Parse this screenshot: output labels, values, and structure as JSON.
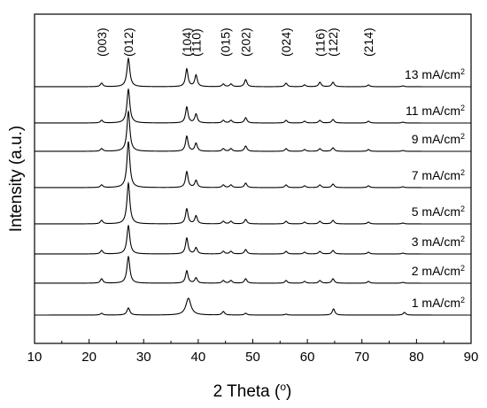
{
  "chart_data": {
    "type": "line",
    "xlabel_base": "2 Theta (",
    "xlabel_sup": "o",
    "xlabel_end": ")",
    "ylabel": "Intensity (a.u.)",
    "xlim": [
      10,
      90
    ],
    "xticks": [
      "10",
      "20",
      "30",
      "40",
      "50",
      "60",
      "70",
      "80",
      "90"
    ],
    "peaks": [
      {
        "label": "(003)",
        "x": 22.3
      },
      {
        "label": "(012)",
        "x": 27.2
      },
      {
        "label": "(104)",
        "x": 37.9
      },
      {
        "label": "(110)",
        "x": 39.6
      },
      {
        "label": "(015)",
        "x": 45.0
      },
      {
        "label": "(202)",
        "x": 48.7
      },
      {
        "label": "(024)",
        "x": 56.1
      },
      {
        "label": "(116)",
        "x": 62.3
      },
      {
        "label": "(122)",
        "x": 64.7
      },
      {
        "label": "(214)",
        "x": 71.2
      }
    ],
    "series": [
      {
        "name": "13 mA/cm",
        "sup": "2",
        "peaks": [
          [
            22.3,
            4
          ],
          [
            27.2,
            32
          ],
          [
            37.9,
            20
          ],
          [
            39.6,
            13
          ],
          [
            44.6,
            3
          ],
          [
            46.0,
            3
          ],
          [
            48.7,
            8
          ],
          [
            56.1,
            4
          ],
          [
            59.5,
            2
          ],
          [
            62.3,
            5
          ],
          [
            64.7,
            5
          ],
          [
            71.2,
            2
          ],
          [
            77.5,
            1
          ]
        ]
      },
      {
        "name": "11 mA/cm",
        "sup": "2",
        "peaks": [
          [
            22.3,
            3
          ],
          [
            27.2,
            38
          ],
          [
            37.9,
            18
          ],
          [
            39.6,
            10
          ],
          [
            44.6,
            3
          ],
          [
            46.0,
            3
          ],
          [
            48.7,
            6
          ],
          [
            56.1,
            3
          ],
          [
            59.5,
            2
          ],
          [
            62.3,
            3
          ],
          [
            64.7,
            4
          ],
          [
            71.2,
            2
          ],
          [
            77.5,
            1
          ]
        ]
      },
      {
        "name": "9 mA/cm",
        "sup": "2",
        "peaks": [
          [
            22.3,
            3
          ],
          [
            27.2,
            45
          ],
          [
            37.9,
            17
          ],
          [
            39.6,
            9
          ],
          [
            44.6,
            3
          ],
          [
            46.0,
            3
          ],
          [
            48.7,
            6
          ],
          [
            56.1,
            3
          ],
          [
            59.5,
            2
          ],
          [
            62.3,
            3
          ],
          [
            64.7,
            4
          ],
          [
            71.2,
            2
          ],
          [
            77.5,
            1
          ]
        ]
      },
      {
        "name": "7 mA/cm",
        "sup": "2",
        "peaks": [
          [
            22.3,
            3
          ],
          [
            27.2,
            52
          ],
          [
            37.9,
            18
          ],
          [
            39.6,
            8
          ],
          [
            44.6,
            3
          ],
          [
            46.0,
            3
          ],
          [
            48.7,
            5
          ],
          [
            56.1,
            3
          ],
          [
            59.5,
            2
          ],
          [
            62.3,
            3
          ],
          [
            64.7,
            4
          ],
          [
            71.2,
            2
          ],
          [
            77.5,
            1
          ]
        ]
      },
      {
        "name": "5 mA/cm",
        "sup": "2",
        "peaks": [
          [
            22.3,
            4
          ],
          [
            27.2,
            46
          ],
          [
            37.9,
            17
          ],
          [
            39.6,
            9
          ],
          [
            44.6,
            3
          ],
          [
            46.0,
            3
          ],
          [
            48.7,
            5
          ],
          [
            56.1,
            3
          ],
          [
            59.5,
            2
          ],
          [
            62.3,
            3
          ],
          [
            64.7,
            4
          ],
          [
            71.2,
            2
          ],
          [
            77.5,
            1
          ]
        ]
      },
      {
        "name": "3 mA/cm",
        "sup": "2",
        "peaks": [
          [
            22.3,
            4
          ],
          [
            27.2,
            32
          ],
          [
            37.9,
            18
          ],
          [
            39.6,
            7
          ],
          [
            44.6,
            3
          ],
          [
            46.0,
            3
          ],
          [
            48.7,
            5
          ],
          [
            56.1,
            3
          ],
          [
            59.5,
            2
          ],
          [
            62.3,
            3
          ],
          [
            64.7,
            4
          ],
          [
            71.2,
            2
          ],
          [
            77.5,
            1
          ]
        ]
      },
      {
        "name": "2 mA/cm",
        "sup": "2",
        "peaks": [
          [
            22.3,
            5
          ],
          [
            27.2,
            30
          ],
          [
            37.9,
            14
          ],
          [
            39.6,
            6
          ],
          [
            44.6,
            3
          ],
          [
            46.0,
            3
          ],
          [
            48.7,
            5
          ],
          [
            56.1,
            3
          ],
          [
            59.5,
            2
          ],
          [
            62.3,
            3
          ],
          [
            64.7,
            5
          ],
          [
            71.2,
            2
          ],
          [
            77.5,
            1
          ]
        ]
      },
      {
        "name": "1 mA/cm",
        "sup": "2",
        "peaks": [
          [
            22.3,
            2
          ],
          [
            27.2,
            8
          ],
          [
            38.2,
            19
          ],
          [
            44.6,
            4
          ],
          [
            48.7,
            2
          ],
          [
            56.1,
            1
          ],
          [
            64.8,
            7
          ],
          [
            77.8,
            3
          ]
        ]
      }
    ],
    "line_color": "#000000",
    "grid": false,
    "legend": "labels above each trace, right side"
  }
}
